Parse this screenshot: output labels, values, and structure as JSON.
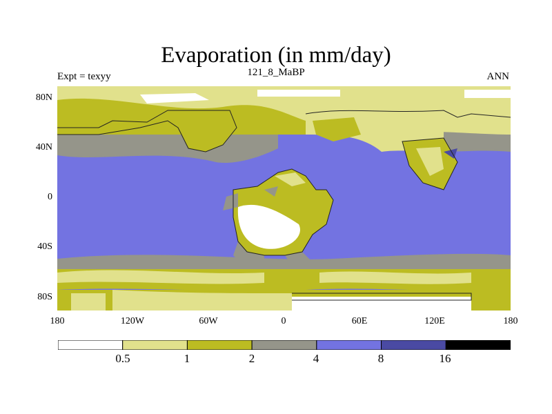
{
  "header": {
    "title": "Evaporation (in mm/day)",
    "left": "Expt = texyy",
    "center": "121_8_MaBP",
    "right": "ANN"
  },
  "axes": {
    "lat_ticks": [
      "80N",
      "40N",
      "0",
      "40S",
      "80S"
    ],
    "lon_ticks": [
      "180",
      "120W",
      "60W",
      "0",
      "60E",
      "120E",
      "180"
    ]
  },
  "colorbar": {
    "labels": [
      "0.5",
      "1",
      "2",
      "4",
      "8",
      "16"
    ],
    "colors": [
      "#ffffff",
      "#e1e18c",
      "#bcbc22",
      "#95958a",
      "#7373e1",
      "#4a4aa3",
      "#000000"
    ]
  }
}
